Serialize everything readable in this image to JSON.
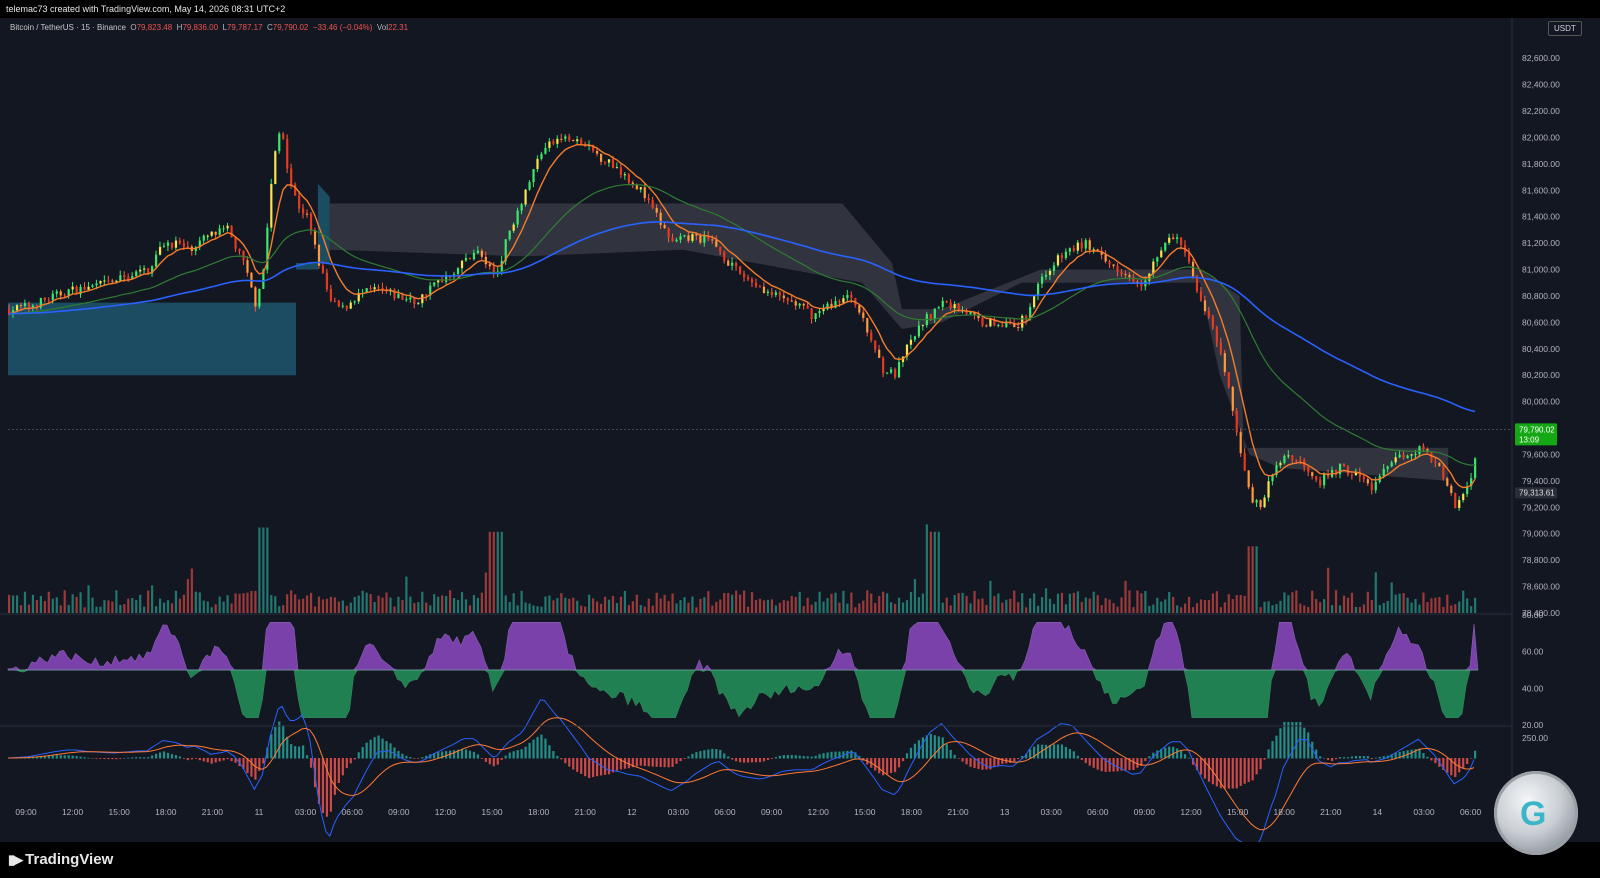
{
  "attribution": "telemac73 created with TradingView.com, May 14, 2026 08:31 UTC+2",
  "brand": "TradingView",
  "legend": {
    "symbol": "Bitcoin / TetherUS · 15 · Binance",
    "o_label": "O",
    "o_value": "79,823.48",
    "h_label": "H",
    "h_value": "79,836.00",
    "l_label": "L",
    "l_value": "79,787.17",
    "c_label": "C",
    "c_value": "79,790.02",
    "change": "−33.46 (−0.04%)",
    "vol_label": "Vol",
    "vol_value": "22.31"
  },
  "currency": "USDT",
  "price_badge": {
    "price": "79,790.02",
    "countdown": "13:09"
  },
  "level_badge": "79,313.61",
  "colors": {
    "background": "#131722",
    "bull": "#26a69a",
    "bear": "#ef5350",
    "ema_fast": "#f57c2b",
    "ema_mid": "#2e7d32",
    "ema_slow": "#2962ff",
    "rsi_up": "#9c4fd6",
    "rsi_down": "#2ed67a",
    "current_price": "#15a815"
  },
  "chart_data": {
    "type": "candlestick",
    "symbol": "BTCUSDT",
    "interval": "15",
    "y_axis": {
      "ticks": [
        "82,600.00",
        "82,400.00",
        "82,200.00",
        "82,000.00",
        "81,800.00",
        "81,600.00",
        "81,400.00",
        "81,200.00",
        "81,000.00",
        "80,800.00",
        "80,600.00",
        "80,400.00",
        "80,200.00",
        "80,000.00",
        "79,600.00",
        "79,400.00",
        "79,200.00",
        "79,000.00",
        "78,800.00",
        "78,600.00",
        "78,400.00"
      ],
      "range": [
        78400,
        82700
      ]
    },
    "x_axis": {
      "ticks": [
        "09:00",
        "12:00",
        "15:00",
        "18:00",
        "21:00",
        "11",
        "03:00",
        "06:00",
        "09:00",
        "12:00",
        "15:00",
        "18:00",
        "21:00",
        "12",
        "03:00",
        "06:00",
        "09:00",
        "12:00",
        "15:00",
        "18:00",
        "21:00",
        "13",
        "03:00",
        "06:00",
        "09:00",
        "12:00",
        "15:00",
        "18:00",
        "21:00",
        "14",
        "03:00",
        "06:00"
      ]
    },
    "close_path": [
      [
        0,
        80700
      ],
      [
        10,
        80720
      ],
      [
        20,
        80780
      ],
      [
        30,
        80840
      ],
      [
        40,
        80860
      ],
      [
        50,
        80900
      ],
      [
        60,
        80950
      ],
      [
        70,
        81000
      ],
      [
        78,
        81200
      ],
      [
        85,
        81200
      ],
      [
        90,
        81150
      ],
      [
        95,
        81200
      ],
      [
        100,
        81250
      ],
      [
        110,
        81300
      ],
      [
        118,
        81050
      ],
      [
        124,
        80750
      ],
      [
        128,
        81000
      ],
      [
        133,
        81800
      ],
      [
        137,
        82100
      ],
      [
        141,
        81700
      ],
      [
        145,
        81500
      ],
      [
        150,
        81400
      ],
      [
        156,
        81050
      ],
      [
        162,
        80750
      ],
      [
        168,
        80700
      ],
      [
        175,
        80800
      ],
      [
        185,
        80850
      ],
      [
        195,
        80800
      ],
      [
        205,
        80750
      ],
      [
        215,
        80900
      ],
      [
        225,
        81000
      ],
      [
        235,
        81150
      ],
      [
        245,
        80950
      ],
      [
        252,
        81300
      ],
      [
        260,
        81600
      ],
      [
        268,
        81900
      ],
      [
        278,
        82000
      ],
      [
        288,
        81950
      ],
      [
        298,
        81850
      ],
      [
        308,
        81750
      ],
      [
        318,
        81600
      ],
      [
        326,
        81400
      ],
      [
        334,
        81200
      ],
      [
        345,
        81250
      ],
      [
        355,
        81200
      ],
      [
        365,
        81000
      ],
      [
        375,
        80900
      ],
      [
        385,
        80800
      ],
      [
        395,
        80750
      ],
      [
        405,
        80650
      ],
      [
        415,
        80750
      ],
      [
        425,
        80800
      ],
      [
        430,
        80600
      ],
      [
        436,
        80400
      ],
      [
        440,
        80250
      ],
      [
        446,
        80200
      ],
      [
        452,
        80400
      ],
      [
        460,
        80600
      ],
      [
        470,
        80750
      ],
      [
        480,
        80700
      ],
      [
        490,
        80600
      ],
      [
        500,
        80600
      ],
      [
        506,
        80550
      ],
      [
        512,
        80650
      ],
      [
        518,
        80900
      ],
      [
        526,
        81050
      ],
      [
        534,
        81150
      ],
      [
        542,
        81200
      ],
      [
        552,
        81050
      ],
      [
        560,
        81000
      ],
      [
        570,
        80900
      ],
      [
        578,
        81100
      ],
      [
        585,
        81250
      ],
      [
        590,
        81200
      ],
      [
        596,
        80950
      ],
      [
        602,
        80700
      ],
      [
        608,
        80450
      ],
      [
        614,
        80100
      ],
      [
        618,
        79750
      ],
      [
        622,
        79500
      ],
      [
        626,
        79250
      ],
      [
        630,
        79200
      ],
      [
        636,
        79450
      ],
      [
        642,
        79600
      ],
      [
        650,
        79550
      ],
      [
        660,
        79400
      ],
      [
        670,
        79500
      ],
      [
        678,
        79450
      ],
      [
        686,
        79350
      ],
      [
        694,
        79500
      ],
      [
        702,
        79600
      ],
      [
        710,
        79650
      ],
      [
        718,
        79550
      ],
      [
        724,
        79350
      ],
      [
        728,
        79200
      ],
      [
        732,
        79300
      ],
      [
        736,
        79450
      ],
      [
        740,
        79700
      ]
    ],
    "volume": {
      "range": [
        0,
        100
      ],
      "spikes": [
        {
          "x": 128,
          "v": 100
        },
        {
          "x": 245,
          "v": 95
        },
        {
          "x": 465,
          "v": 95
        },
        {
          "x": 626,
          "v": 78
        }
      ]
    },
    "rsi": {
      "ticks": [
        "80.00",
        "60.00",
        "40.00",
        "20.00"
      ],
      "range": [
        20,
        80
      ],
      "midline": 50
    },
    "macd": {
      "ticks": [
        "250.00"
      ]
    }
  }
}
